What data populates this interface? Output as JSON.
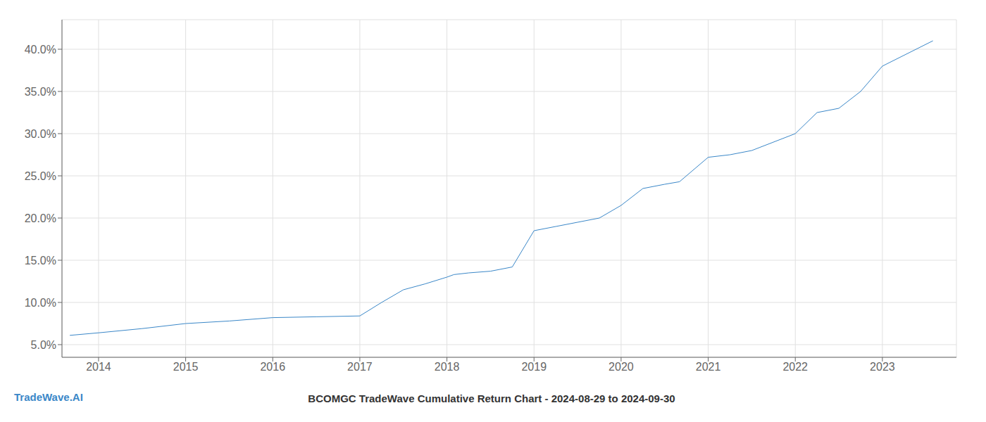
{
  "chart_data": {
    "type": "line",
    "title": "BCOMGC TradeWave Cumulative Return Chart - 2024-08-29 to 2024-09-30",
    "annotations": [
      "TradeWave.AI"
    ],
    "x": [
      2013.67,
      2014.0,
      2014.5,
      2015.0,
      2015.5,
      2016.0,
      2016.5,
      2017.0,
      2017.25,
      2017.5,
      2017.75,
      2018.0,
      2018.08,
      2018.25,
      2018.5,
      2018.75,
      2019.0,
      2019.25,
      2019.5,
      2019.75,
      2020.0,
      2020.25,
      2020.5,
      2020.67,
      2021.0,
      2021.25,
      2021.5,
      2022.0,
      2022.25,
      2022.5,
      2022.75,
      2023.0,
      2023.58
    ],
    "values": [
      6.1,
      6.4,
      6.9,
      7.5,
      7.8,
      8.2,
      8.3,
      8.4,
      10.0,
      11.5,
      12.2,
      13.0,
      13.3,
      13.5,
      13.7,
      14.2,
      18.5,
      19.0,
      19.5,
      20.0,
      21.5,
      23.5,
      24.0,
      24.3,
      27.2,
      27.5,
      28.0,
      30.0,
      32.5,
      33.0,
      35.0,
      38.0,
      41.0
    ],
    "color": "#3a87c8",
    "xlim": [
      2013.58,
      2023.85
    ],
    "xticks": [
      2014,
      2015,
      2016,
      2017,
      2018,
      2019,
      2020,
      2021,
      2022,
      2023
    ],
    "ylim": [
      3.5,
      43.5
    ],
    "yticks": [
      {
        "value": 5.0,
        "label": "5.0%"
      },
      {
        "value": 10.0,
        "label": "10.0%"
      },
      {
        "value": 15.0,
        "label": "15.0%"
      },
      {
        "value": 20.0,
        "label": "20.0%"
      },
      {
        "value": 25.0,
        "label": "25.0%"
      },
      {
        "value": 30.0,
        "label": "30.0%"
      },
      {
        "value": 35.0,
        "label": "35.0%"
      },
      {
        "value": 40.0,
        "label": "40.0%"
      }
    ],
    "grid": true
  }
}
